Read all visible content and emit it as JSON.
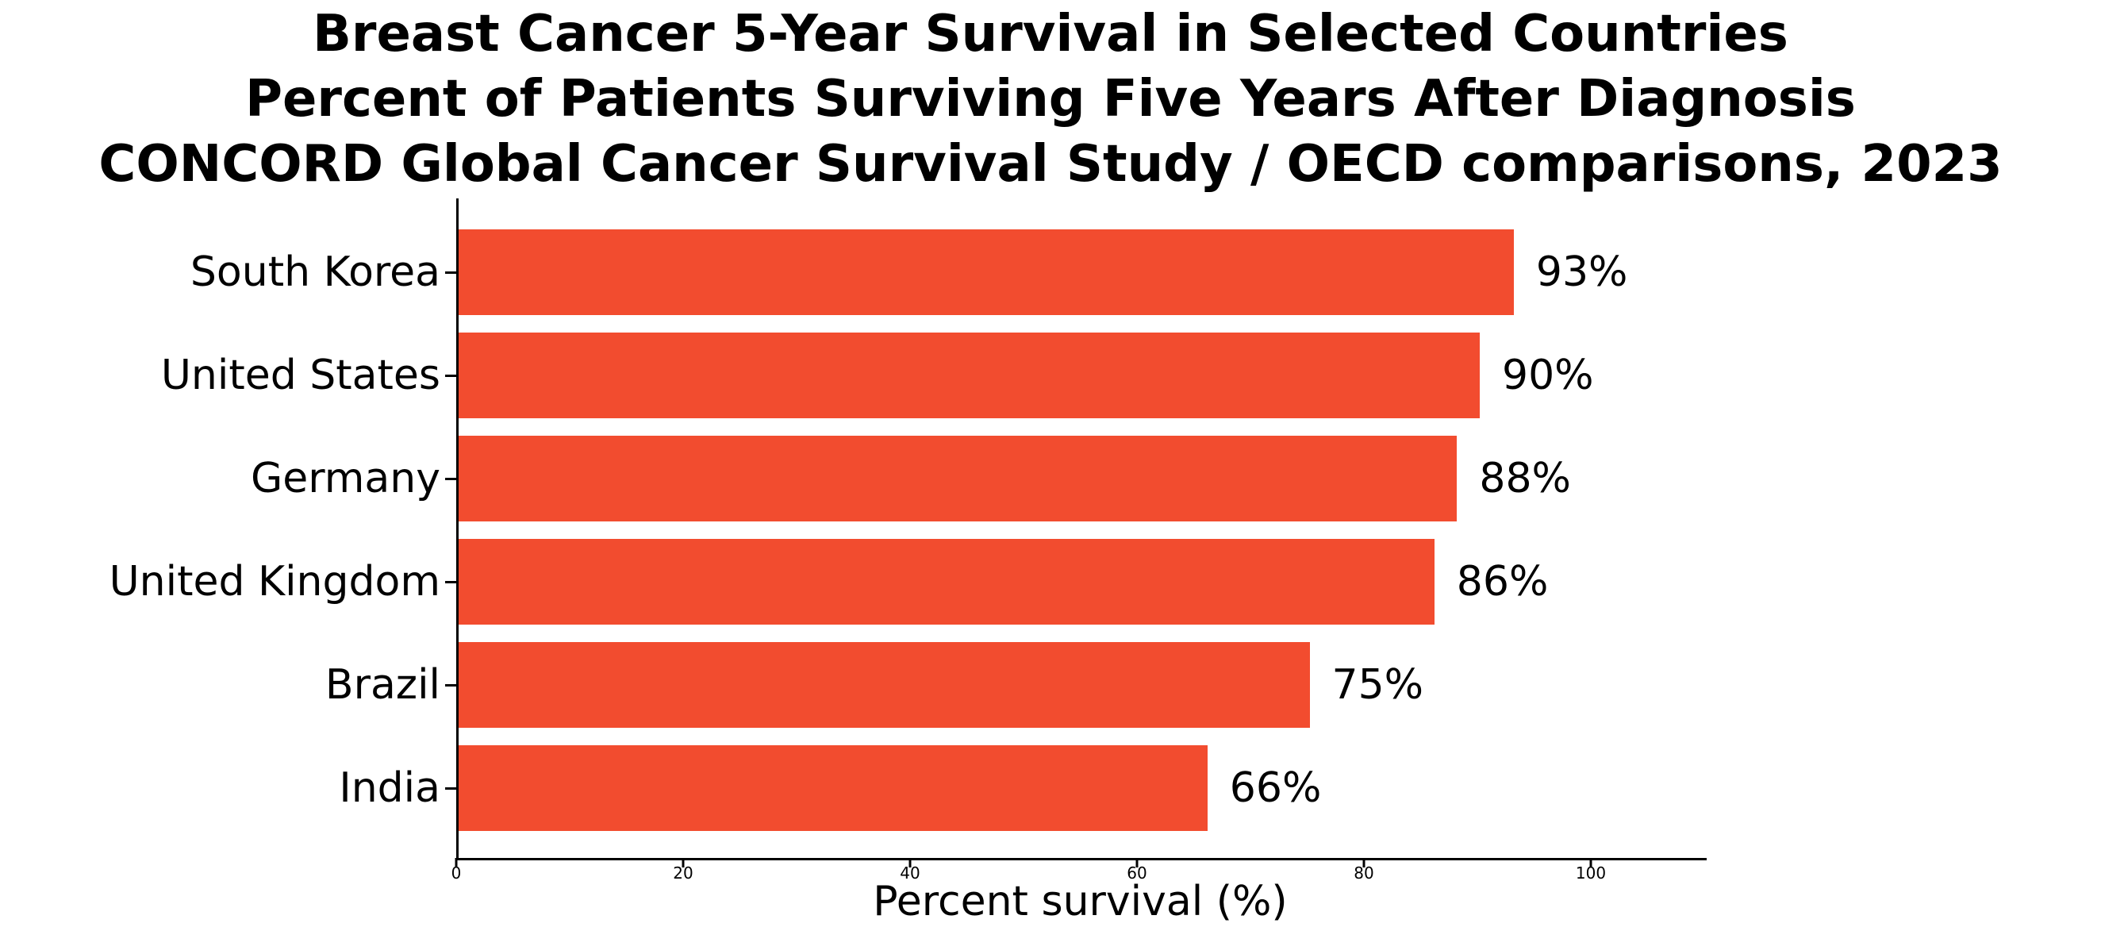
{
  "title": {
    "line1": "Breast Cancer 5-Year Survival in Selected Countries",
    "line2": "Percent of Patients Surviving Five Years After Diagnosis",
    "line3": "CONCORD Global Cancer Survival Study / OECD comparisons, 2023"
  },
  "chart_data": {
    "type": "bar",
    "orientation": "horizontal",
    "title": "Breast Cancer 5-Year Survival in Selected Countries",
    "subtitle": "Percent of Patients Surviving Five Years After Diagnosis",
    "subtitle2": "CONCORD Global Cancer Survival Study / OECD comparisons, 2023",
    "categories": [
      "South Korea",
      "United States",
      "Germany",
      "United Kingdom",
      "Brazil",
      "India"
    ],
    "values": [
      93,
      90,
      88,
      86,
      75,
      66
    ],
    "value_labels": [
      "93%",
      "90%",
      "88%",
      "86%",
      "75%",
      "66%"
    ],
    "xlabel": "Percent survival (%)",
    "ylabel": "",
    "xlim": [
      0,
      110
    ],
    "x_ticks": [
      0,
      20,
      40,
      60,
      80,
      100
    ],
    "x_tick_labels": [
      "0",
      "20",
      "40",
      "60",
      "80",
      "100"
    ],
    "grid": false,
    "legend": "none",
    "bar_color": "#F24C2F",
    "text_color": "#000000",
    "axis_color": "#000000"
  }
}
